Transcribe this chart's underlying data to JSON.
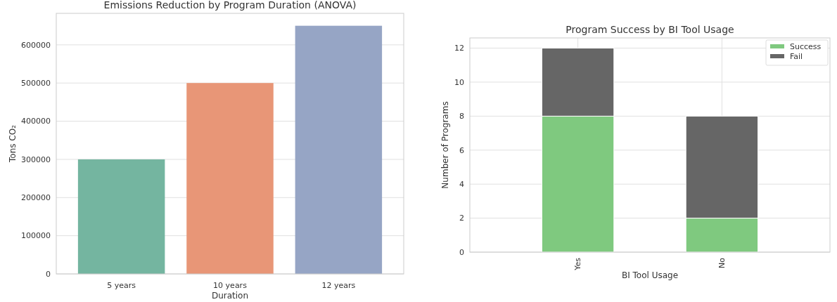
{
  "chart_data": [
    {
      "type": "bar",
      "title": "Emissions Reduction by Program Duration (ANOVA)",
      "xlabel": "Duration",
      "ylabel": "Tons CO₂",
      "categories": [
        "5 years",
        "10 years",
        "12 years"
      ],
      "values": [
        300000,
        500000,
        650000
      ],
      "colors": [
        "#74b5a0",
        "#e89677",
        "#96a5c5"
      ],
      "ylim": [
        0,
        682500
      ],
      "yticks": [
        0,
        100000,
        200000,
        300000,
        400000,
        500000,
        600000
      ],
      "grid": "y"
    },
    {
      "type": "bar",
      "title": "Program Success by BI Tool Usage",
      "xlabel": "BI Tool Usage",
      "ylabel": "Number of Programs",
      "categories": [
        "Yes",
        "No"
      ],
      "stacked": true,
      "series": [
        {
          "name": "Success",
          "color": "#7fc97f",
          "values": [
            8,
            2
          ]
        },
        {
          "name": "Fail",
          "color": "#666666",
          "values": [
            4,
            6
          ]
        }
      ],
      "ylim": [
        0,
        12.6
      ],
      "yticks": [
        0,
        2,
        4,
        6,
        8,
        10,
        12
      ],
      "grid": true,
      "legend": "top right"
    }
  ]
}
